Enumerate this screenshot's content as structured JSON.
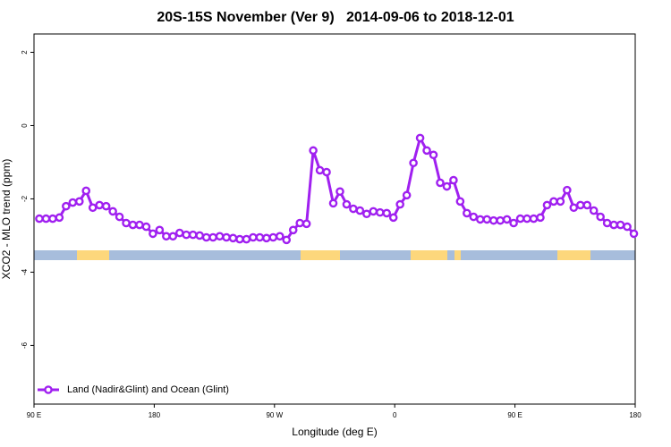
{
  "chart_data": {
    "type": "line",
    "title": "20S-15S November (Ver 9)   2014-09-06 to 2018-12-01",
    "x_label": "Longitude (deg E)",
    "y_label": "XCO2 - MLO trend (ppm)",
    "x": [
      94,
      99,
      104,
      109,
      114,
      119,
      124,
      129,
      134,
      139,
      144,
      149,
      154,
      159,
      164,
      169,
      174,
      179,
      184,
      189,
      194,
      199,
      204,
      209,
      214,
      219,
      224,
      229,
      234,
      239,
      244,
      249,
      254,
      259,
      264,
      269,
      274,
      279,
      284,
      289,
      294,
      299,
      304,
      309,
      314,
      319,
      324,
      329,
      334,
      339,
      344,
      349,
      354,
      359,
      364,
      369,
      374,
      379,
      384,
      389,
      394,
      399,
      404,
      409,
      414,
      419,
      424,
      429,
      434,
      439,
      444,
      449,
      454,
      459,
      464,
      469,
      474,
      479,
      484,
      489,
      494,
      499,
      504,
      509,
      514,
      519,
      524,
      529,
      534,
      539
    ],
    "series": [
      {
        "name": "Land (Nadir&Glint) and Ocean (Glint)",
        "color": "#a020f0",
        "values": [
          -2.54,
          -2.54,
          -2.54,
          -2.51,
          -2.2,
          -2.1,
          -2.07,
          -1.78,
          -2.24,
          -2.17,
          -2.2,
          -2.34,
          -2.49,
          -2.66,
          -2.71,
          -2.71,
          -2.76,
          -2.95,
          -2.85,
          -3.02,
          -3.02,
          -2.93,
          -2.98,
          -2.98,
          -3.0,
          -3.05,
          -3.05,
          -3.02,
          -3.05,
          -3.07,
          -3.1,
          -3.1,
          -3.05,
          -3.05,
          -3.07,
          -3.05,
          -3.02,
          -3.12,
          -2.85,
          -2.66,
          -2.68,
          -0.68,
          -1.22,
          -1.27,
          -2.12,
          -1.8,
          -2.15,
          -2.27,
          -2.32,
          -2.41,
          -2.34,
          -2.37,
          -2.39,
          -2.51,
          -2.15,
          -1.9,
          -1.02,
          -0.34,
          -0.68,
          -0.8,
          -1.56,
          -1.66,
          -1.49,
          -2.07,
          -2.39,
          -2.49,
          -2.56,
          -2.56,
          -2.59,
          -2.59,
          -2.56,
          -2.66,
          -2.54,
          -2.54,
          -2.54,
          -2.51,
          -2.17,
          -2.07,
          -2.07,
          -1.76,
          -2.24,
          -2.17,
          -2.17,
          -2.32,
          -2.49,
          -2.66,
          -2.71,
          -2.71,
          -2.76,
          -2.95
        ]
      }
    ],
    "xlim": [
      90,
      540
    ],
    "xticks": [
      {
        "value": 90,
        "label": "90 E"
      },
      180,
      {
        "value": 270,
        "label": "90 W"
      },
      {
        "value": 360,
        "label": "0"
      },
      {
        "value": 450,
        "label": "90 E"
      },
      {
        "value": 540,
        "label": "180"
      }
    ],
    "ylim": [
      -7.6,
      2.5
    ],
    "yticks": [
      2,
      0,
      -2,
      -4,
      -6
    ],
    "legend": "bottom-left"
  }
}
